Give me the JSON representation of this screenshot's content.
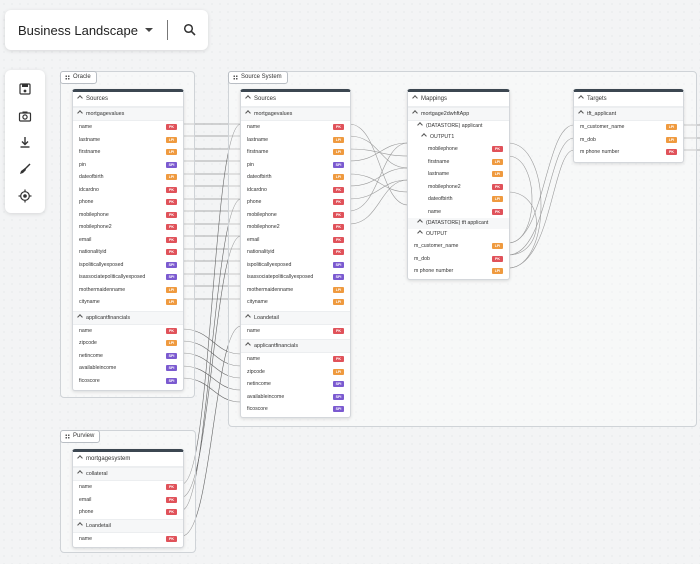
{
  "app": {
    "title": "Business Landscape"
  },
  "colors": {
    "pk": "#e0525a",
    "lpi": "#ef9a3f",
    "spi": "#7b5ad0",
    "link": "#4d4d4d"
  },
  "icons": {
    "search": "search-icon",
    "save": "save-icon",
    "snapshot": "camera-icon",
    "download": "download-icon",
    "clean": "broom-icon",
    "focus": "locate-icon"
  },
  "groups": {
    "oracle": "Oracle",
    "source": "Source System",
    "purview": "Purview"
  },
  "oracle_node": {
    "header": "Sources",
    "sections": [
      {
        "title": "mortgagevalues",
        "rows": [
          {
            "name": "name",
            "badge": "PK"
          },
          {
            "name": "lastname",
            "badge": "LPI"
          },
          {
            "name": "firstname",
            "badge": "LPI"
          },
          {
            "name": "pin",
            "badge": "SPI"
          },
          {
            "name": "dateofbirth",
            "badge": "LPI"
          },
          {
            "name": "idcardno",
            "badge": "PK"
          },
          {
            "name": "phone",
            "badge": "PK"
          },
          {
            "name": "mobilephone",
            "badge": "PK"
          },
          {
            "name": "mobilephone2",
            "badge": "PK"
          },
          {
            "name": "email",
            "badge": "PK"
          },
          {
            "name": "nationalityid",
            "badge": "PK"
          },
          {
            "name": "ispoliticallyexposed",
            "badge": "SPI"
          },
          {
            "name": "isassociatepoliticallyexposed",
            "badge": "SPI"
          },
          {
            "name": "mothermaidenname",
            "badge": "LPI"
          },
          {
            "name": "cityname",
            "badge": "LPI"
          }
        ]
      },
      {
        "title": "applicantfinancials",
        "rows": [
          {
            "name": "name",
            "badge": "PK"
          },
          {
            "name": "zipcode",
            "badge": "LPI"
          },
          {
            "name": "netincome",
            "badge": "SPI"
          },
          {
            "name": "availableincome",
            "badge": "SPI"
          },
          {
            "name": "ficoscore",
            "badge": "SPI"
          }
        ]
      }
    ]
  },
  "source_node": {
    "header": "Sources",
    "sections": [
      {
        "title": "mortgagevalues",
        "rows": [
          {
            "name": "name",
            "badge": "PK"
          },
          {
            "name": "lastname",
            "badge": "LPI"
          },
          {
            "name": "firstname",
            "badge": "LPI"
          },
          {
            "name": "pin",
            "badge": "SPI"
          },
          {
            "name": "dateofbirth",
            "badge": "LPI"
          },
          {
            "name": "idcardno",
            "badge": "PK"
          },
          {
            "name": "phone",
            "badge": "PK"
          },
          {
            "name": "mobilephone",
            "badge": "PK"
          },
          {
            "name": "mobilephone2",
            "badge": "PK"
          },
          {
            "name": "email",
            "badge": "PK"
          },
          {
            "name": "nationalityid",
            "badge": "PK"
          },
          {
            "name": "ispoliticallyexposed",
            "badge": "SPI"
          },
          {
            "name": "isassociatepoliticallyexposed",
            "badge": "SPI"
          },
          {
            "name": "mothermaidenname",
            "badge": "LPI"
          },
          {
            "name": "cityname",
            "badge": "LPI"
          }
        ]
      },
      {
        "title": "Loandetail",
        "rows": [
          {
            "name": "name",
            "badge": "PK"
          }
        ]
      },
      {
        "title": "applicantfinancials",
        "rows": [
          {
            "name": "name",
            "badge": "PK"
          },
          {
            "name": "zipcode",
            "badge": "LPI"
          },
          {
            "name": "netincome",
            "badge": "SPI"
          },
          {
            "name": "availableincome",
            "badge": "SPI"
          },
          {
            "name": "ficoscore",
            "badge": "SPI"
          }
        ]
      }
    ]
  },
  "mappings_node": {
    "header": "Mappings",
    "app": "mortgage2dwhftApp",
    "store1": "(DATASTORE) applicant",
    "output1": "OUTPUT1",
    "output1_rows": [
      {
        "name": "mobilephone",
        "badge": "PK"
      },
      {
        "name": "firstname",
        "badge": "LPI"
      },
      {
        "name": "lastname",
        "badge": "LPI"
      },
      {
        "name": "mobilephone2",
        "badge": "PK"
      },
      {
        "name": "dateofbirth",
        "badge": "LPI"
      },
      {
        "name": "name",
        "badge": "PK"
      }
    ],
    "store2": "(DATASTORE) tft applicant",
    "output2": "OUTPUT",
    "output2_rows": [
      {
        "name": "m_customer_name",
        "badge": "LPI"
      },
      {
        "name": "m_dob",
        "badge": "PK"
      },
      {
        "name": "m phone number",
        "badge": "LPI"
      }
    ]
  },
  "targets_node": {
    "header": "Targets",
    "section": "tft_applicant",
    "rows": [
      {
        "name": "m_customer_name",
        "badge": "LPI"
      },
      {
        "name": "m_dob",
        "badge": "LPI"
      },
      {
        "name": "m phone number",
        "badge": "PK"
      }
    ]
  },
  "purview_node": {
    "header": "mortgagesystem",
    "sections": [
      {
        "title": "collateral",
        "rows": [
          {
            "name": "name",
            "badge": "PK"
          },
          {
            "name": "email",
            "badge": "PK"
          },
          {
            "name": "phone",
            "badge": "PK"
          }
        ]
      },
      {
        "title": "Loandetail",
        "rows": [
          {
            "name": "name",
            "badge": "PK"
          }
        ]
      }
    ]
  }
}
